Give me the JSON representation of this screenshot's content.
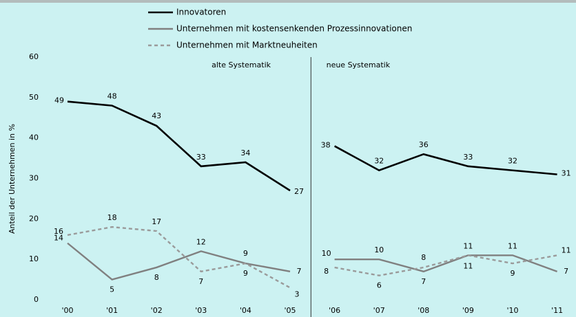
{
  "chart_data": {
    "type": "line",
    "y_label": "Anteil der Unternehmen in %",
    "categories": [
      "'00",
      "'01",
      "'02",
      "'03",
      "'04",
      "'05",
      "'06",
      "'07",
      "'08",
      "'09",
      "'10",
      "'11"
    ],
    "groups": [
      {
        "label": "alte Systematik",
        "count": 6
      },
      {
        "label": "neue Systematik",
        "count": 6
      }
    ],
    "series": [
      {
        "name": "Innovatoren",
        "color": "#000000",
        "dash": false,
        "values": [
          49,
          48,
          43,
          33,
          34,
          27,
          38,
          32,
          36,
          33,
          32,
          31
        ]
      },
      {
        "name": "Unternehmen mit kostensenkenden Prozessinnovationen",
        "color": "#808080",
        "dash": false,
        "values": [
          14,
          5,
          8,
          12,
          9,
          7,
          10,
          10,
          7,
          11,
          11,
          7
        ]
      },
      {
        "name": "Unternehmen mit Marktneuheiten",
        "color": "#9a9a9a",
        "dash": true,
        "values": [
          16,
          18,
          17,
          7,
          9,
          3,
          8,
          6,
          8,
          11,
          9,
          11
        ]
      }
    ],
    "ylim": [
      0,
      60
    ],
    "yticks": [
      0,
      10,
      20,
      30,
      40,
      50,
      60
    ],
    "grid": false
  }
}
